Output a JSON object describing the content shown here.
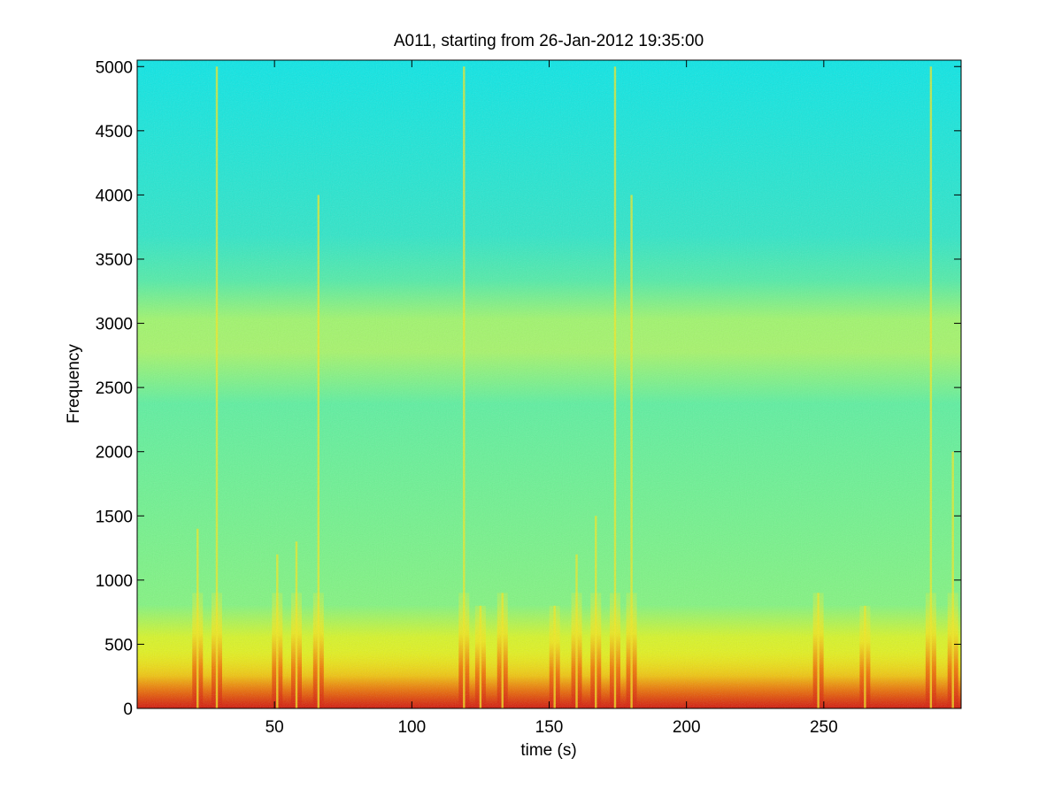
{
  "chart_data": {
    "type": "heatmap",
    "title": "A011, starting from 26-Jan-2012 19:35:00",
    "xlabel": "time (s)",
    "ylabel": "Frequency",
    "xlim": [
      0,
      300
    ],
    "ylim": [
      0,
      5050
    ],
    "x_ticks": [
      50,
      100,
      150,
      200,
      250
    ],
    "y_ticks": [
      0,
      500,
      1000,
      1500,
      2000,
      2500,
      3000,
      3500,
      4000,
      4500,
      5000
    ],
    "grid": false,
    "colormap": "jet",
    "background_levels": [
      {
        "freq_from": 0,
        "freq_to": 200,
        "level": "high"
      },
      {
        "freq_from": 200,
        "freq_to": 700,
        "level": "medium-high"
      },
      {
        "freq_from": 700,
        "freq_to": 2400,
        "level": "medium"
      },
      {
        "freq_from": 2400,
        "freq_to": 3100,
        "level": "medium-high"
      },
      {
        "freq_from": 3100,
        "freq_to": 3700,
        "level": "medium"
      },
      {
        "freq_from": 3700,
        "freq_to": 5050,
        "level": "low"
      }
    ],
    "events": [
      {
        "t": 22,
        "extent": 1400
      },
      {
        "t": 29,
        "extent": 5000
      },
      {
        "t": 51,
        "extent": 1200
      },
      {
        "t": 58,
        "extent": 1300
      },
      {
        "t": 66,
        "extent": 4000
      },
      {
        "t": 119,
        "extent": 5000
      },
      {
        "t": 125,
        "extent": 800
      },
      {
        "t": 133,
        "extent": 900
      },
      {
        "t": 152,
        "extent": 800
      },
      {
        "t": 160,
        "extent": 1200
      },
      {
        "t": 167,
        "extent": 1500
      },
      {
        "t": 174,
        "extent": 5000
      },
      {
        "t": 180,
        "extent": 4000
      },
      {
        "t": 248,
        "extent": 900
      },
      {
        "t": 265,
        "extent": 800
      },
      {
        "t": 289,
        "extent": 5000
      },
      {
        "t": 297,
        "extent": 2000
      }
    ]
  }
}
